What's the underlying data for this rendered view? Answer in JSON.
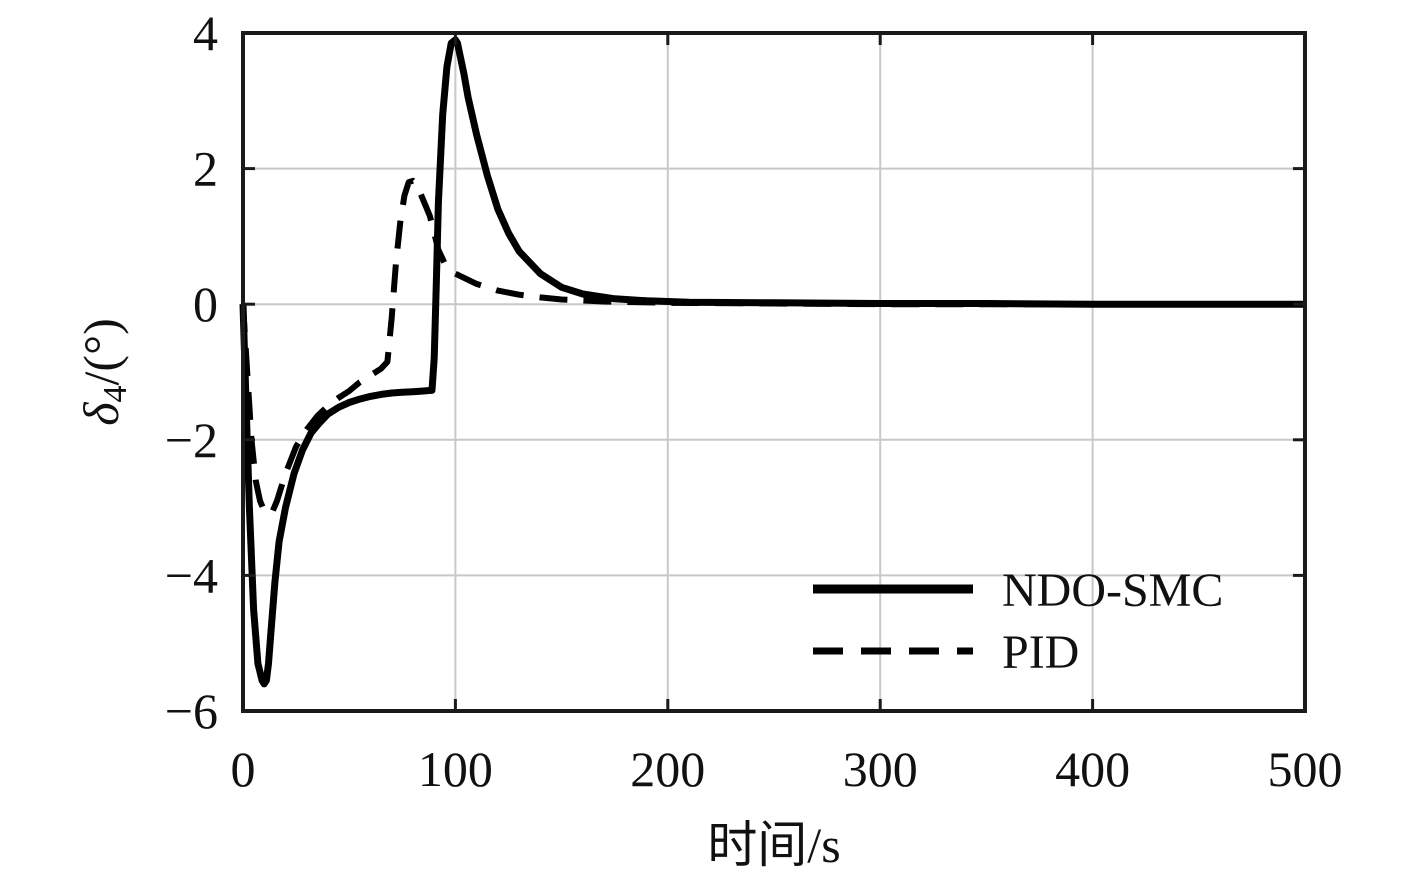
{
  "chart_data": {
    "type": "line",
    "title": "",
    "xlabel": "时间/s",
    "ylabel_symbol": "δ",
    "ylabel_subscript": "4",
    "ylabel_unit": "/(°)",
    "xlim": [
      0,
      500
    ],
    "ylim": [
      -6,
      4
    ],
    "xticks": [
      "0",
      "100",
      "200",
      "300",
      "400",
      "500"
    ],
    "yticks": [
      "4",
      "2",
      "0",
      "−2",
      "−4",
      "−6"
    ],
    "xtick_values": [
      0,
      100,
      200,
      300,
      400,
      500
    ],
    "ytick_values": [
      4,
      2,
      0,
      -2,
      -4,
      -6
    ],
    "grid": true,
    "legend_position": "bottom-right",
    "series": [
      {
        "name": "NDO-SMC",
        "style": "solid",
        "color": "#000000",
        "x": [
          0,
          1,
          2,
          3,
          5,
          7,
          9,
          10,
          11,
          12,
          13,
          15,
          17,
          20,
          24,
          28,
          32,
          36,
          40,
          45,
          50,
          55,
          60,
          65,
          70,
          75,
          80,
          85,
          89,
          90,
          91,
          92,
          94,
          96,
          98,
          100,
          101,
          102,
          104,
          106,
          110,
          115,
          120,
          125,
          130,
          140,
          150,
          160,
          175,
          190,
          210,
          250,
          300,
          350,
          400,
          450,
          500
        ],
        "y": [
          0,
          -1.0,
          -2.0,
          -3.0,
          -4.5,
          -5.3,
          -5.55,
          -5.6,
          -5.55,
          -5.3,
          -4.9,
          -4.1,
          -3.5,
          -3.0,
          -2.5,
          -2.15,
          -1.9,
          -1.75,
          -1.62,
          -1.52,
          -1.45,
          -1.4,
          -1.36,
          -1.33,
          -1.31,
          -1.3,
          -1.29,
          -1.28,
          -1.27,
          -0.8,
          0.3,
          1.5,
          2.8,
          3.5,
          3.85,
          3.9,
          3.85,
          3.7,
          3.4,
          3.05,
          2.5,
          1.9,
          1.4,
          1.05,
          0.78,
          0.45,
          0.25,
          0.15,
          0.08,
          0.05,
          0.03,
          0.02,
          0.01,
          0.01,
          0.0,
          0.0,
          0.0
        ]
      },
      {
        "name": "PID",
        "style": "dashed",
        "color": "#000000",
        "x": [
          0,
          2,
          4,
          6,
          8,
          10,
          12,
          14,
          16,
          18,
          20,
          25,
          30,
          35,
          40,
          45,
          50,
          55,
          60,
          65,
          68,
          70,
          72,
          74,
          76,
          78,
          80,
          82,
          84,
          86,
          88,
          90,
          92,
          95,
          100,
          110,
          120,
          130,
          140,
          150,
          170,
          200,
          300,
          500
        ],
        "y": [
          0,
          -1.0,
          -2.0,
          -2.6,
          -2.9,
          -3.05,
          -3.1,
          -3.05,
          -2.9,
          -2.7,
          -2.5,
          -2.1,
          -1.85,
          -1.65,
          -1.5,
          -1.38,
          -1.28,
          -1.15,
          -1.05,
          -0.95,
          -0.85,
          -0.2,
          0.6,
          1.2,
          1.6,
          1.8,
          1.82,
          1.75,
          1.6,
          1.45,
          1.3,
          1.05,
          0.8,
          0.6,
          0.45,
          0.3,
          0.2,
          0.14,
          0.1,
          0.07,
          0.04,
          0.02,
          0.0,
          0.0
        ]
      }
    ]
  }
}
